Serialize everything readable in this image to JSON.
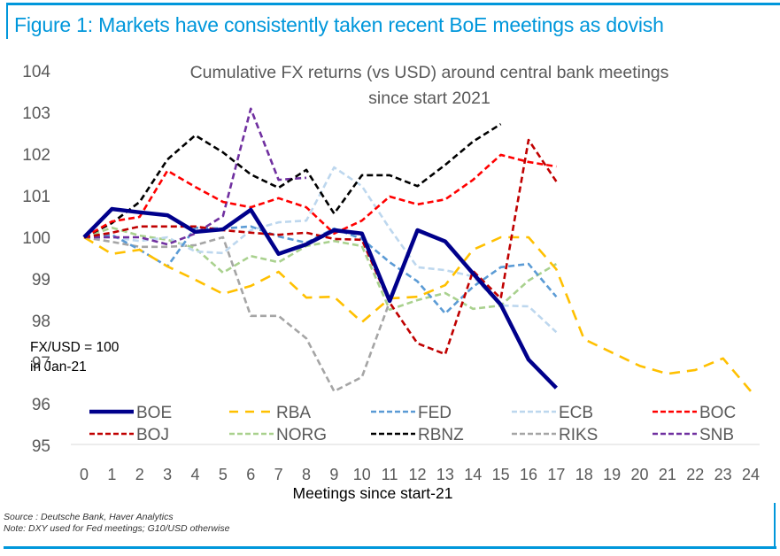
{
  "figure": {
    "title": "Figure 1: Markets have consistently taken recent BoE meetings as dovish",
    "source": "Source : Deutsche Bank, Haver Analytics",
    "note": "Note: DXY used for Fed meetings; G10/USD otherwise",
    "accent_color": "#0097db"
  },
  "chart_data": {
    "type": "line",
    "title": "Cumulative FX returns (vs USD) around central bank meetings since start 2021",
    "title_lines": [
      "Cumulative FX returns (vs USD) around central bank meetings",
      "since start 2021"
    ],
    "xlabel": "Meetings since start-21",
    "ylabel": "",
    "annotation": [
      "FX/USD = 100",
      "in Jan-21"
    ],
    "x": [
      0,
      1,
      2,
      3,
      4,
      5,
      6,
      7,
      8,
      9,
      10,
      11,
      12,
      13,
      14,
      15,
      16,
      17,
      18,
      19,
      20,
      21,
      22,
      23,
      24
    ],
    "xlim": [
      0,
      24
    ],
    "ylim": [
      95,
      104
    ],
    "yticks": [
      95,
      96,
      97,
      98,
      99,
      100,
      101,
      102,
      103,
      104
    ],
    "grid": false,
    "legend_position": "bottom-inside",
    "series": [
      {
        "name": "BOE",
        "color": "#00008b",
        "style": "solid",
        "values": [
          100,
          100.68,
          100.6,
          100.53,
          100.13,
          100.19,
          100.66,
          99.6,
          99.83,
          100.17,
          100.09,
          98.47,
          100.17,
          99.9,
          99.13,
          98.38,
          97.06,
          96.38
        ]
      },
      {
        "name": "RBA",
        "color": "#ffc000",
        "style": "long-dash",
        "values": [
          100,
          99.6,
          99.7,
          99.3,
          98.98,
          98.64,
          98.83,
          99.17,
          98.55,
          98.57,
          97.96,
          98.53,
          98.57,
          98.85,
          99.7,
          100.0,
          100.0,
          99.23,
          97.55,
          97.23,
          96.91,
          96.72,
          96.81,
          97.09,
          96.3
        ]
      },
      {
        "name": "FED",
        "color": "#5b9bd5",
        "style": "dash",
        "values": [
          100,
          100.06,
          99.7,
          99.3,
          100.23,
          100.21,
          100.26,
          100.02,
          99.87,
          100.21,
          99.96,
          99.4,
          98.94,
          98.17,
          98.81,
          99.28,
          99.36,
          98.57
        ]
      },
      {
        "name": "ECB",
        "color": "#bdd7ee",
        "style": "dash",
        "values": [
          100,
          100.0,
          99.91,
          100.0,
          99.66,
          99.62,
          100.17,
          100.36,
          100.4,
          101.68,
          101.23,
          100.21,
          99.28,
          99.21,
          99.06,
          98.36,
          98.34,
          97.72
        ]
      },
      {
        "name": "BOC",
        "color": "#ff0000",
        "style": "dash",
        "values": [
          100,
          100.38,
          100.49,
          101.6,
          101.21,
          100.85,
          100.72,
          100.94,
          100.72,
          100.09,
          100.4,
          100.98,
          100.79,
          100.91,
          101.38,
          101.98,
          101.81,
          101.7
        ]
      },
      {
        "name": "BOJ",
        "color": "#c00000",
        "style": "dash",
        "values": [
          100,
          100.11,
          100.26,
          100.26,
          100.26,
          100.17,
          100.11,
          100.06,
          100.11,
          99.96,
          99.94,
          98.43,
          97.45,
          97.19,
          99.19,
          98.53,
          102.34,
          101.34
        ]
      },
      {
        "name": "NORG",
        "color": "#a9d18e",
        "style": "dash",
        "values": [
          100,
          100.23,
          100.04,
          99.94,
          99.74,
          99.15,
          99.55,
          99.4,
          99.79,
          99.91,
          99.79,
          98.26,
          98.49,
          98.66,
          98.28,
          98.36,
          98.96,
          99.36
        ]
      },
      {
        "name": "RBNZ",
        "color": "#000000",
        "style": "dash",
        "values": [
          100,
          100.34,
          100.85,
          101.87,
          102.45,
          102.04,
          101.51,
          101.19,
          101.62,
          100.57,
          101.49,
          101.49,
          101.23,
          101.74,
          102.3,
          102.72
        ]
      },
      {
        "name": "RIKS",
        "color": "#a5a5a5",
        "style": "dash",
        "values": [
          100,
          99.89,
          99.77,
          99.77,
          99.81,
          100.0,
          98.11,
          98.11,
          97.57,
          96.3,
          96.64,
          98.45
        ]
      },
      {
        "name": "SNB",
        "color": "#7030a0",
        "style": "dash",
        "values": [
          100,
          100.0,
          100.0,
          99.83,
          100.09,
          100.51,
          103.09,
          101.38,
          101.43
        ]
      }
    ]
  }
}
